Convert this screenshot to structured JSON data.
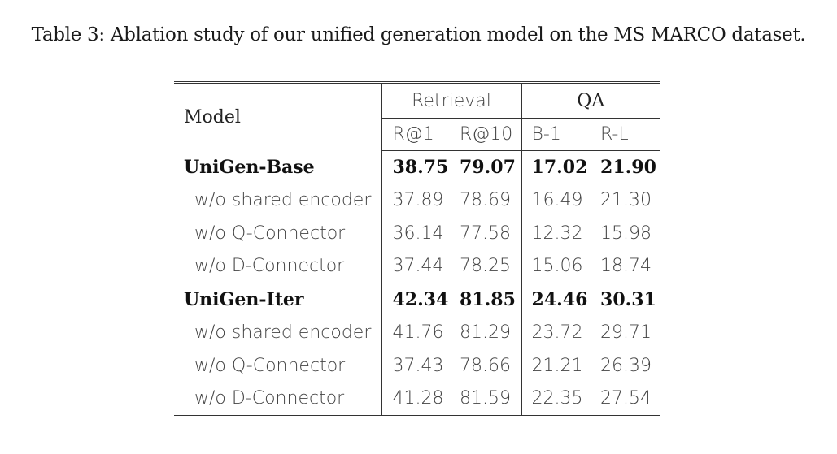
{
  "caption": "Table 3: Ablation study of our unified generation model on the MS MARCO dataset.",
  "header": {
    "model": "Model",
    "retrieval": "Retrieval",
    "qa": "QA",
    "r1": "R@1",
    "r10": "R@10",
    "b1": "B-1",
    "rl": "R-L"
  },
  "blocks": [
    {
      "main": {
        "name": "UniGen-Base",
        "r1": "38.75",
        "r10": "79.07",
        "b1": "17.02",
        "rl": "21.90"
      },
      "rows": [
        {
          "name": "w/o shared encoder",
          "r1": "37.89",
          "r10": "78.69",
          "b1": "16.49",
          "rl": "21.30"
        },
        {
          "name": "w/o Q-Connector",
          "r1": "36.14",
          "r10": "77.58",
          "b1": "12.32",
          "rl": "15.98"
        },
        {
          "name": "w/o D-Connector",
          "r1": "37.44",
          "r10": "78.25",
          "b1": "15.06",
          "rl": "18.74"
        }
      ]
    },
    {
      "main": {
        "name": "UniGen-Iter",
        "r1": "42.34",
        "r10": "81.85",
        "b1": "24.46",
        "rl": "30.31"
      },
      "rows": [
        {
          "name": "w/o shared encoder",
          "r1": "41.76",
          "r10": "81.29",
          "b1": "23.72",
          "rl": "29.71"
        },
        {
          "name": "w/o Q-Connector",
          "r1": "37.43",
          "r10": "78.66",
          "b1": "21.21",
          "rl": "26.39"
        },
        {
          "name": "w/o D-Connector",
          "r1": "41.28",
          "r10": "81.59",
          "b1": "22.35",
          "rl": "27.54"
        }
      ]
    }
  ]
}
